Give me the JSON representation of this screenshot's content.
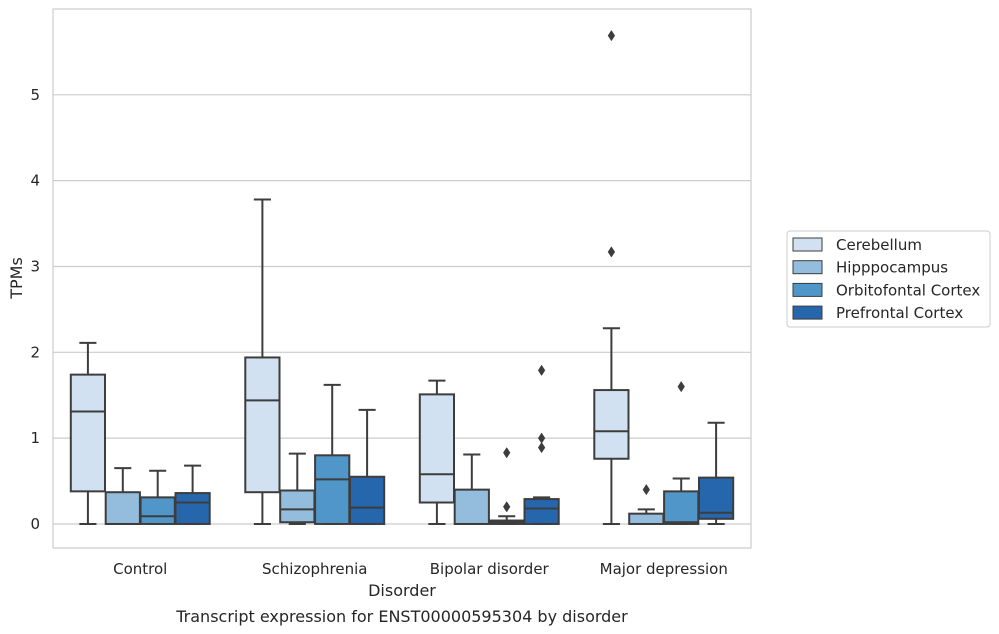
{
  "chart_data": {
    "type": "box",
    "xlabel": "Disorder",
    "ylabel": "TPMs",
    "caption": "Transcript expression for ENST00000595304 by disorder",
    "categories": [
      "Control",
      "Schizophrenia",
      "Bipolar disorder",
      "Major depression"
    ],
    "ylim": [
      -0.28,
      6.0
    ],
    "yticks": [
      0,
      1,
      2,
      3,
      4,
      5
    ],
    "grid": true,
    "legend_position": "right",
    "series": [
      {
        "name": "Cerebellum",
        "color": "#d1e1f1",
        "boxes": [
          {
            "whislo": 0.0,
            "q1": 0.38,
            "med": 1.31,
            "q3": 1.74,
            "whishi": 2.11,
            "fliers": []
          },
          {
            "whislo": 0.0,
            "q1": 0.37,
            "med": 1.44,
            "q3": 1.94,
            "whishi": 3.78,
            "fliers": []
          },
          {
            "whislo": 0.0,
            "q1": 0.25,
            "med": 0.58,
            "q3": 1.51,
            "whishi": 1.67,
            "fliers": []
          },
          {
            "whislo": 0.0,
            "q1": 0.76,
            "med": 1.08,
            "q3": 1.56,
            "whishi": 2.28,
            "fliers": [
              3.17,
              5.69
            ]
          }
        ]
      },
      {
        "name": "Hipppocampus",
        "color": "#94bcdd",
        "boxes": [
          {
            "whislo": 0.0,
            "q1": 0.0,
            "med": 0.0,
            "q3": 0.37,
            "whishi": 0.65,
            "fliers": []
          },
          {
            "whislo": 0.0,
            "q1": 0.02,
            "med": 0.17,
            "q3": 0.39,
            "whishi": 0.82,
            "fliers": []
          },
          {
            "whislo": 0.0,
            "q1": 0.0,
            "med": 0.0,
            "q3": 0.4,
            "whishi": 0.81,
            "fliers": []
          },
          {
            "whislo": 0.0,
            "q1": 0.0,
            "med": 0.0,
            "q3": 0.12,
            "whishi": 0.17,
            "fliers": [
              0.4
            ]
          }
        ]
      },
      {
        "name": "Orbitofontal Cortex",
        "color": "#5096c8",
        "boxes": [
          {
            "whislo": 0.0,
            "q1": 0.0,
            "med": 0.09,
            "q3": 0.31,
            "whishi": 0.62,
            "fliers": []
          },
          {
            "whislo": 0.0,
            "q1": 0.0,
            "med": 0.52,
            "q3": 0.8,
            "whishi": 1.62,
            "fliers": []
          },
          {
            "whislo": 0.0,
            "q1": 0.0,
            "med": 0.02,
            "q3": 0.04,
            "whishi": 0.09,
            "fliers": [
              0.2,
              0.83
            ]
          },
          {
            "whislo": 0.0,
            "q1": 0.0,
            "med": 0.02,
            "q3": 0.38,
            "whishi": 0.53,
            "fliers": [
              1.6
            ]
          }
        ]
      },
      {
        "name": "Prefrontal Cortex",
        "color": "#2566ad",
        "boxes": [
          {
            "whislo": 0.0,
            "q1": 0.0,
            "med": 0.25,
            "q3": 0.36,
            "whishi": 0.68,
            "fliers": []
          },
          {
            "whislo": 0.0,
            "q1": 0.0,
            "med": 0.19,
            "q3": 0.55,
            "whishi": 1.33,
            "fliers": []
          },
          {
            "whislo": 0.0,
            "q1": 0.0,
            "med": 0.18,
            "q3": 0.29,
            "whishi": 0.31,
            "fliers": [
              0.89,
              1.0,
              1.79
            ]
          },
          {
            "whislo": 0.0,
            "q1": 0.06,
            "med": 0.13,
            "q3": 0.54,
            "whishi": 1.18,
            "fliers": []
          }
        ]
      }
    ]
  }
}
